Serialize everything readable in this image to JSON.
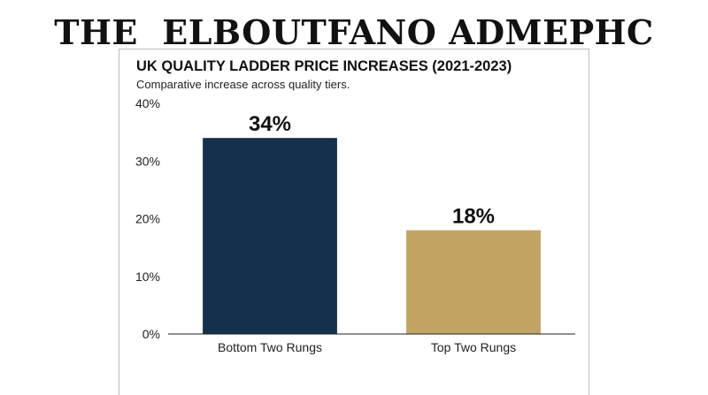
{
  "masthead": "THE  ELBOUTFANO ADMEPHC",
  "chart_data": {
    "type": "bar",
    "title": "UK QUALITY LADDER PRICE INCREASES (2021-2023)",
    "subtitle": "Comparative increase across quality tiers.",
    "categories": [
      "Bottom Two Rungs",
      "Top Two Rungs"
    ],
    "values": [
      34,
      18
    ],
    "data_labels": [
      "34%",
      "18%"
    ],
    "colors": [
      "#13304d",
      "#c1a461"
    ],
    "ylim": [
      0,
      40
    ],
    "yticks": [
      0,
      10,
      20,
      30,
      40
    ],
    "ytick_labels": [
      "0%",
      "10%",
      "20%",
      "30%",
      "40%"
    ],
    "grid": false,
    "legend": "none"
  }
}
